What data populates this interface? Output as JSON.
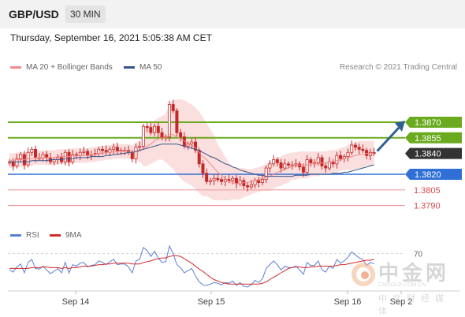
{
  "header": {
    "pair": "GBP/USD",
    "timeframe": "30 MIN",
    "timestamp": "Thursday, September 16, 2021 5:05:38 AM CET"
  },
  "legend": {
    "ma20": "MA 20 + Bollinger Bands",
    "ma50": "MA 50",
    "credit": "Research © 2021 Trading Central"
  },
  "rsi_legend": {
    "rsi": "RSI",
    "ma": "9MA"
  },
  "watermark": {
    "name": "中金网",
    "url": "CNGOLD.COM.CN",
    "sub": "中文财经媒体"
  },
  "colors": {
    "resistance": "#6aaa1f",
    "support": "#2f6fd6",
    "current": "#333333",
    "target": "#f0a0a0",
    "band": "#fbdede",
    "ma20": "#f08a8a",
    "ma50": "#34558b",
    "candle": "#c62828",
    "rsi": "#5b7fd6",
    "rsi_ma": "#d42a2a",
    "arrow": "#2f6190"
  },
  "chart_data": {
    "type": "line",
    "instrument": "GBP/USD",
    "interval": "30 MIN",
    "x_tick_labels": [
      "Sep 14",
      "Sep 15",
      "Sep 16",
      "Sep 2"
    ],
    "price_levels": [
      {
        "value": 1.387,
        "label": "1.3870",
        "role": "resistance"
      },
      {
        "value": 1.3855,
        "label": "1.3855",
        "role": "resistance"
      },
      {
        "value": 1.384,
        "label": "1.3840",
        "role": "current"
      },
      {
        "value": 1.382,
        "label": "1.3820",
        "role": "support"
      },
      {
        "value": 1.3805,
        "label": "1.3805",
        "role": "target"
      },
      {
        "value": 1.379,
        "label": "1.3790",
        "role": "target"
      }
    ],
    "close": [
      1.3832,
      1.3828,
      1.3835,
      1.3839,
      1.3829,
      1.3841,
      1.3844,
      1.3836,
      1.3836,
      1.3839,
      1.3836,
      1.3832,
      1.3834,
      1.3836,
      1.3832,
      1.3841,
      1.3832,
      1.3839,
      1.3838,
      1.3841,
      1.3842,
      1.3838,
      1.3839,
      1.384,
      1.3844,
      1.3843,
      1.3841,
      1.3844,
      1.3846,
      1.3842,
      1.3843,
      1.3843,
      1.3841,
      1.3835,
      1.3846,
      1.3847,
      1.3866,
      1.3865,
      1.386,
      1.3866,
      1.386,
      1.3855,
      1.3856,
      1.3887,
      1.3881,
      1.386,
      1.3856,
      1.3847,
      1.3849,
      1.3851,
      1.3843,
      1.383,
      1.3821,
      1.3813,
      1.3814,
      1.3816,
      1.3815,
      1.3813,
      1.3815,
      1.3814,
      1.3816,
      1.3811,
      1.3814,
      1.3809,
      1.3808,
      1.381,
      1.3814,
      1.3812,
      1.3815,
      1.3826,
      1.383,
      1.3834,
      1.3831,
      1.3826,
      1.383,
      1.3829,
      1.3829,
      1.383,
      1.3827,
      1.3822,
      1.3834,
      1.3831,
      1.3831,
      1.3836,
      1.3828,
      1.3826,
      1.3832,
      1.383,
      1.3838,
      1.3835,
      1.3837,
      1.3841,
      1.3848,
      1.3846,
      1.3844,
      1.3843,
      1.3838,
      1.3841,
      1.384
    ],
    "ma20": [
      1.3833,
      1.3833,
      1.3834,
      1.3834,
      1.3834,
      1.3835,
      1.3835,
      1.3836,
      1.3836,
      1.3836,
      1.3836,
      1.3836,
      1.3836,
      1.3837,
      1.3837,
      1.3837,
      1.3837,
      1.3838,
      1.3838,
      1.3838,
      1.3838,
      1.3838,
      1.3839,
      1.3839,
      1.384,
      1.384,
      1.3841,
      1.3841,
      1.3842,
      1.3842,
      1.3842,
      1.3842,
      1.3842,
      1.3841,
      1.3842,
      1.3842,
      1.3845,
      1.3847,
      1.3849,
      1.3852,
      1.3854,
      1.3855,
      1.3855,
      1.3858,
      1.3858,
      1.3856,
      1.3854,
      1.3852,
      1.385,
      1.3848,
      1.3845,
      1.3841,
      1.3837,
      1.3834,
      1.383,
      1.3826,
      1.3822,
      1.3819,
      1.3816,
      1.3813,
      1.3812,
      1.3811,
      1.3811,
      1.3812,
      1.3812,
      1.3813,
      1.3814,
      1.3815,
      1.3816,
      1.3817,
      1.3818,
      1.382,
      1.3822,
      1.3823,
      1.3825,
      1.3826,
      1.3828,
      1.3828,
      1.3829,
      1.3829,
      1.3829,
      1.383,
      1.383,
      1.383,
      1.3831,
      1.3831,
      1.3832,
      1.3832,
      1.3833,
      1.3834,
      1.3835,
      1.3836,
      1.3837,
      1.3838,
      1.3839,
      1.3839,
      1.384,
      1.384,
      1.384
    ],
    "ma50": [
      1.3832,
      1.3832,
      1.3832,
      1.3832,
      1.3832,
      1.3832,
      1.3833,
      1.3833,
      1.3833,
      1.3833,
      1.3833,
      1.3834,
      1.3834,
      1.3834,
      1.3834,
      1.3835,
      1.3835,
      1.3835,
      1.3836,
      1.3836,
      1.3836,
      1.3836,
      1.3837,
      1.3837,
      1.3837,
      1.3837,
      1.3838,
      1.3838,
      1.3839,
      1.3839,
      1.384,
      1.384,
      1.3841,
      1.3841,
      1.3842,
      1.3843,
      1.3844,
      1.3845,
      1.3846,
      1.3847,
      1.3848,
      1.3849,
      1.3849,
      1.3849,
      1.3849,
      1.3849,
      1.3848,
      1.3847,
      1.3846,
      1.3845,
      1.3844,
      1.3843,
      1.3841,
      1.3839,
      1.3837,
      1.3836,
      1.3834,
      1.3832,
      1.383,
      1.3829,
      1.3827,
      1.3826,
      1.3824,
      1.3823,
      1.3822,
      1.3821,
      1.382,
      1.3819,
      1.3819,
      1.3818,
      1.3818,
      1.3818,
      1.3818,
      1.3818,
      1.3818,
      1.3818,
      1.3818,
      1.3819,
      1.3819,
      1.3819,
      1.3819,
      1.382,
      1.382,
      1.382,
      1.382,
      1.382,
      1.382,
      1.3821,
      1.3821,
      1.3821,
      1.3822,
      1.3822,
      1.3823,
      1.3824,
      1.3825,
      1.3826,
      1.3827,
      1.3828,
      1.3829
    ],
    "bb_upper": [
      1.384,
      1.384,
      1.3841,
      1.3841,
      1.3841,
      1.3842,
      1.3842,
      1.3843,
      1.3843,
      1.3843,
      1.3843,
      1.3843,
      1.3843,
      1.3844,
      1.3844,
      1.3844,
      1.3844,
      1.3845,
      1.3845,
      1.3845,
      1.3845,
      1.3845,
      1.3846,
      1.3846,
      1.3847,
      1.3847,
      1.3848,
      1.3848,
      1.3849,
      1.3849,
      1.3849,
      1.3849,
      1.3849,
      1.3848,
      1.385,
      1.3852,
      1.3862,
      1.3866,
      1.3868,
      1.3872,
      1.3874,
      1.3876,
      1.3878,
      1.3888,
      1.3891,
      1.3892,
      1.3892,
      1.3891,
      1.3889,
      1.3887,
      1.3884,
      1.388,
      1.3875,
      1.3869,
      1.3863,
      1.3857,
      1.3849,
      1.3843,
      1.3837,
      1.3831,
      1.3828,
      1.3826,
      1.3826,
      1.3826,
      1.3825,
      1.3825,
      1.3826,
      1.3827,
      1.3828,
      1.383,
      1.3832,
      1.3834,
      1.3836,
      1.3837,
      1.3839,
      1.384,
      1.3841,
      1.3841,
      1.3842,
      1.3842,
      1.3842,
      1.3842,
      1.3842,
      1.3842,
      1.3842,
      1.3842,
      1.3843,
      1.3843,
      1.3844,
      1.3845,
      1.3846,
      1.3848,
      1.385,
      1.3851,
      1.3852,
      1.3852,
      1.3852,
      1.3852,
      1.3852
    ],
    "bb_lower": [
      1.3826,
      1.3826,
      1.3827,
      1.3827,
      1.3827,
      1.3828,
      1.3828,
      1.3829,
      1.3829,
      1.3829,
      1.3829,
      1.3829,
      1.3829,
      1.383,
      1.383,
      1.383,
      1.383,
      1.3831,
      1.3831,
      1.3831,
      1.3831,
      1.3831,
      1.3832,
      1.3832,
      1.3833,
      1.3833,
      1.3834,
      1.3834,
      1.3835,
      1.3835,
      1.3835,
      1.3835,
      1.3835,
      1.3834,
      1.3834,
      1.3832,
      1.3828,
      1.3828,
      1.383,
      1.3832,
      1.3834,
      1.3834,
      1.3832,
      1.3828,
      1.3825,
      1.382,
      1.3816,
      1.3813,
      1.3811,
      1.3809,
      1.3806,
      1.3802,
      1.3799,
      1.3799,
      1.3797,
      1.3795,
      1.3795,
      1.3795,
      1.3795,
      1.3795,
      1.3796,
      1.3796,
      1.3796,
      1.3798,
      1.3799,
      1.3801,
      1.3802,
      1.3803,
      1.3804,
      1.3804,
      1.3804,
      1.3806,
      1.3808,
      1.3809,
      1.3811,
      1.3812,
      1.3815,
      1.3815,
      1.3816,
      1.3816,
      1.3816,
      1.3818,
      1.3818,
      1.3818,
      1.382,
      1.382,
      1.3821,
      1.3821,
      1.3822,
      1.3823,
      1.3824,
      1.3824,
      1.3824,
      1.3825,
      1.3826,
      1.3826,
      1.3828,
      1.3828,
      1.3828
    ],
    "forecast": {
      "from": 1.384,
      "to": 1.387
    },
    "rsi": {
      "level_label": "70",
      "level": 70,
      "ylim": [
        25,
        80
      ],
      "rsi": [
        48,
        45,
        52,
        56,
        44,
        58,
        62,
        50,
        49,
        53,
        48,
        43,
        46,
        50,
        44,
        58,
        44,
        55,
        53,
        57,
        58,
        52,
        54,
        55,
        60,
        58,
        55,
        59,
        62,
        55,
        56,
        56,
        52,
        44,
        60,
        62,
        78,
        74,
        66,
        73,
        64,
        58,
        59,
        80,
        70,
        55,
        51,
        44,
        47,
        50,
        40,
        32,
        28,
        27,
        29,
        31,
        30,
        28,
        31,
        30,
        33,
        27,
        31,
        26,
        25,
        28,
        34,
        31,
        36,
        50,
        55,
        60,
        55,
        48,
        53,
        51,
        51,
        53,
        48,
        42,
        58,
        54,
        54,
        60,
        48,
        45,
        53,
        50,
        62,
        57,
        60,
        65,
        72,
        68,
        64,
        62,
        54,
        58,
        56
      ],
      "ma9": [
        50,
        50,
        50,
        50,
        50,
        50,
        51,
        51,
        51,
        52,
        52,
        51,
        51,
        51,
        50,
        51,
        50,
        51,
        51,
        52,
        53,
        53,
        53,
        54,
        55,
        55,
        56,
        56,
        57,
        57,
        57,
        57,
        57,
        56,
        56,
        56,
        58,
        59,
        60,
        62,
        63,
        64,
        64,
        66,
        67,
        67,
        66,
        63,
        60,
        57,
        53,
        49,
        46,
        42,
        38,
        35,
        33,
        31,
        30,
        29,
        29,
        29,
        29,
        29,
        29,
        29,
        29,
        29,
        30,
        32,
        35,
        38,
        41,
        44,
        47,
        50,
        51,
        52,
        52,
        51,
        51,
        52,
        52,
        53,
        53,
        53,
        53,
        53,
        54,
        55,
        55,
        56,
        57,
        58,
        59,
        60,
        61,
        61,
        62
      ]
    }
  }
}
